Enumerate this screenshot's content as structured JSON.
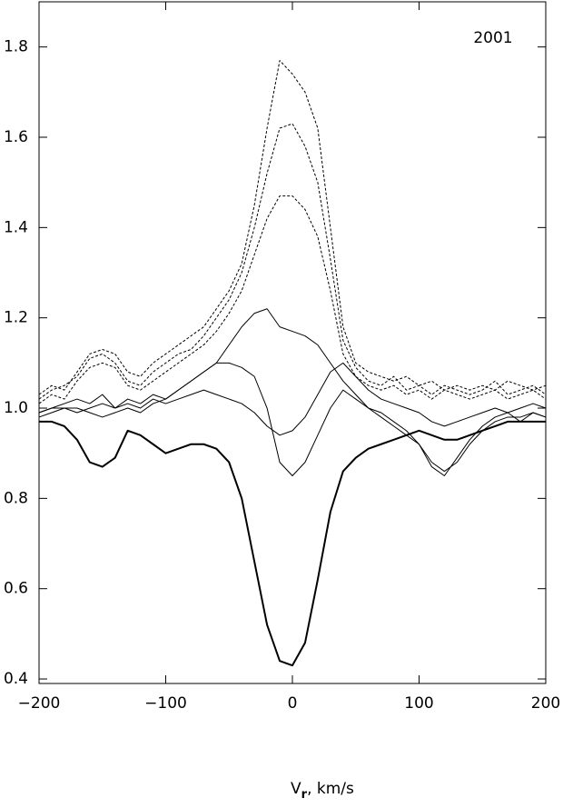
{
  "chart_data": {
    "type": "line",
    "annotation": "2001",
    "xlabel": {
      "main": "V",
      "sub": "r",
      "rest": ", km/s"
    },
    "xlim": [
      -200,
      200
    ],
    "ylim": [
      0.39,
      1.9
    ],
    "xticks": [
      {
        "value": -200,
        "label": "−200"
      },
      {
        "value": -100,
        "label": "−100"
      },
      0,
      100,
      200
    ],
    "yticks": [
      0.4,
      0.6,
      0.8,
      {
        "value": 1,
        "label": "1.0"
      },
      1.2,
      1.4,
      1.6,
      1.8
    ],
    "grid": false,
    "x": [
      -200,
      -190,
      -180,
      -170,
      -160,
      -150,
      -140,
      -130,
      -120,
      -110,
      -100,
      -90,
      -80,
      -70,
      -60,
      -50,
      -40,
      -30,
      -20,
      -10,
      0,
      10,
      20,
      30,
      40,
      50,
      60,
      70,
      80,
      90,
      100,
      110,
      120,
      130,
      140,
      150,
      160,
      170,
      180,
      190,
      200
    ],
    "series": [
      {
        "color": "#000",
        "dash": true,
        "values": [
          1.03,
          1.05,
          1.04,
          1.08,
          1.12,
          1.13,
          1.12,
          1.08,
          1.07,
          1.1,
          1.12,
          1.14,
          1.16,
          1.18,
          1.22,
          1.26,
          1.32,
          1.45,
          1.62,
          1.77,
          1.74,
          1.7,
          1.62,
          1.4,
          1.18,
          1.1,
          1.08,
          1.07,
          1.06,
          1.07,
          1.05,
          1.06,
          1.04,
          1.05,
          1.04,
          1.05,
          1.04,
          1.06,
          1.05,
          1.04,
          1.05
        ]
      },
      {
        "color": "#000",
        "dash": true,
        "values": [
          1.02,
          1.04,
          1.05,
          1.07,
          1.11,
          1.12,
          1.1,
          1.06,
          1.05,
          1.08,
          1.1,
          1.12,
          1.13,
          1.16,
          1.2,
          1.24,
          1.3,
          1.4,
          1.52,
          1.62,
          1.63,
          1.58,
          1.5,
          1.33,
          1.15,
          1.09,
          1.06,
          1.05,
          1.07,
          1.04,
          1.05,
          1.03,
          1.05,
          1.04,
          1.03,
          1.04,
          1.06,
          1.03,
          1.04,
          1.05,
          1.03
        ]
      },
      {
        "color": "#000",
        "dash": true,
        "values": [
          1.01,
          1.03,
          1.02,
          1.06,
          1.09,
          1.1,
          1.09,
          1.05,
          1.04,
          1.06,
          1.08,
          1.1,
          1.12,
          1.14,
          1.17,
          1.21,
          1.26,
          1.34,
          1.42,
          1.47,
          1.47,
          1.44,
          1.38,
          1.26,
          1.12,
          1.07,
          1.05,
          1.04,
          1.05,
          1.03,
          1.04,
          1.02,
          1.04,
          1.03,
          1.02,
          1.03,
          1.04,
          1.02,
          1.03,
          1.04,
          1.02
        ]
      },
      {
        "color": "#000",
        "dash": false,
        "values": [
          0.99,
          1.0,
          1.01,
          1.02,
          1.01,
          1.03,
          1.0,
          1.02,
          1.01,
          1.03,
          1.02,
          1.04,
          1.06,
          1.08,
          1.1,
          1.14,
          1.18,
          1.21,
          1.22,
          1.18,
          1.17,
          1.16,
          1.14,
          1.1,
          1.06,
          1.03,
          1.0,
          0.98,
          0.96,
          0.94,
          0.92,
          0.88,
          0.86,
          0.88,
          0.92,
          0.95,
          0.97,
          0.98,
          0.98,
          0.99,
          0.98
        ]
      },
      {
        "color": "#000",
        "dash": false,
        "values": [
          0.98,
          0.99,
          1.0,
          1.0,
          0.99,
          0.98,
          0.99,
          1.0,
          0.99,
          1.01,
          1.02,
          1.04,
          1.06,
          1.08,
          1.1,
          1.1,
          1.09,
          1.07,
          1.0,
          0.88,
          0.85,
          0.88,
          0.94,
          1.0,
          1.04,
          1.02,
          1.0,
          0.99,
          0.97,
          0.95,
          0.92,
          0.87,
          0.85,
          0.89,
          0.93,
          0.96,
          0.98,
          0.99,
          0.97,
          0.99,
          0.98
        ]
      },
      {
        "color": "#000",
        "dash": false,
        "values": [
          0.99,
          1.0,
          1.0,
          0.99,
          1.0,
          1.01,
          1.0,
          1.01,
          1.0,
          1.02,
          1.01,
          1.02,
          1.03,
          1.04,
          1.03,
          1.02,
          1.01,
          0.99,
          0.96,
          0.94,
          0.95,
          0.98,
          1.03,
          1.08,
          1.1,
          1.07,
          1.04,
          1.02,
          1.01,
          1.0,
          0.99,
          0.97,
          0.96,
          0.97,
          0.98,
          0.99,
          1.0,
          0.99,
          1.0,
          1.01,
          1.0
        ]
      },
      {
        "color": "#000",
        "dash": false,
        "thick": true,
        "values": [
          0.97,
          0.97,
          0.96,
          0.93,
          0.88,
          0.87,
          0.89,
          0.95,
          0.94,
          0.92,
          0.9,
          0.91,
          0.92,
          0.92,
          0.91,
          0.88,
          0.8,
          0.66,
          0.52,
          0.44,
          0.43,
          0.48,
          0.62,
          0.77,
          0.86,
          0.89,
          0.91,
          0.92,
          0.93,
          0.94,
          0.95,
          0.94,
          0.93,
          0.93,
          0.94,
          0.95,
          0.96,
          0.97,
          0.97,
          0.97,
          0.97
        ]
      }
    ]
  }
}
